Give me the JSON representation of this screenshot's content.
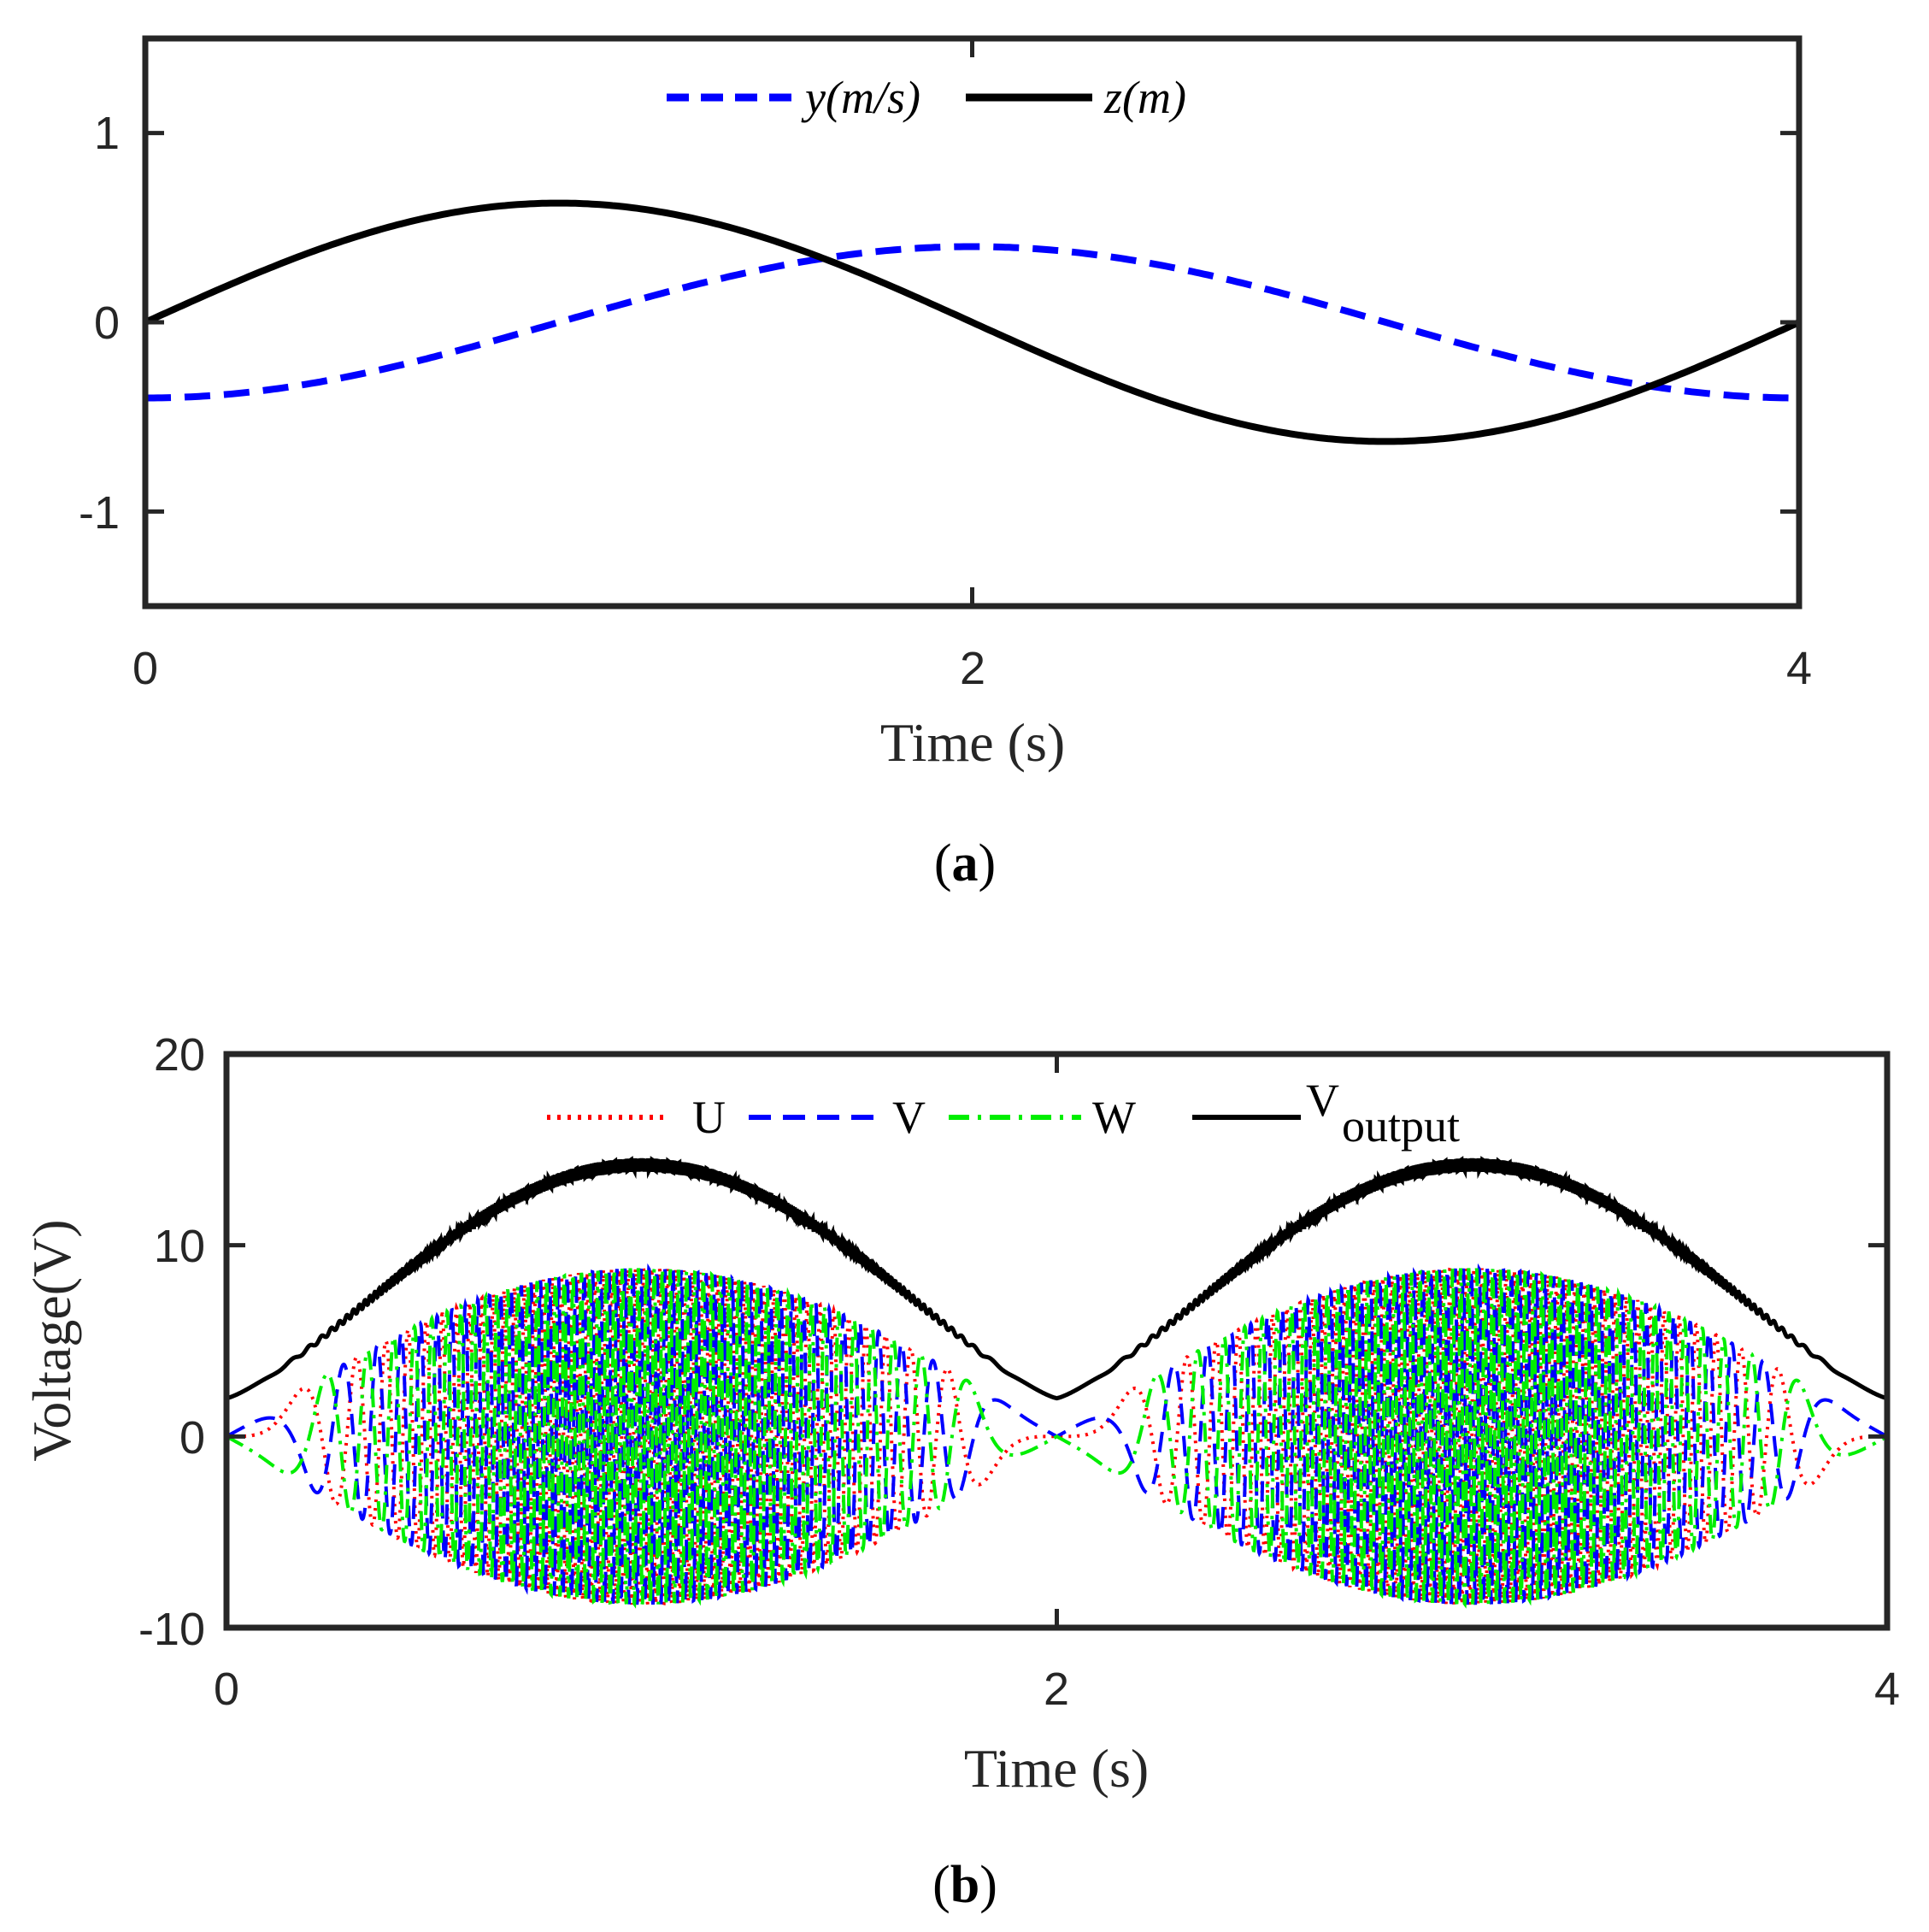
{
  "chart_data": [
    {
      "type": "line",
      "panel": "a",
      "caption_letter": "a",
      "xlabel": "Time (s)",
      "ylabel": "",
      "xlim": [
        0,
        4
      ],
      "ylim": [
        -1.5,
        1.5
      ],
      "xticks": [
        0,
        2,
        4
      ],
      "yticks": [
        -1,
        0,
        1
      ],
      "xtick_labels": [
        "0",
        "2",
        "4"
      ],
      "ytick_labels": [
        "-1",
        "0",
        "1"
      ],
      "legend_position": "top-center",
      "series": [
        {
          "name": "y(m/s)",
          "color": "#0000ff",
          "style": "dashed",
          "amplitude": 0.4,
          "function": "-0.4*cos(pi*t/2)"
        },
        {
          "name": "z(m)",
          "color": "#000000",
          "style": "solid",
          "amplitude": 0.63,
          "function": "0.63*sin(pi*t/2)"
        }
      ]
    },
    {
      "type": "line",
      "panel": "b",
      "caption_letter": "b",
      "xlabel": "Time (s)",
      "ylabel": "Voltage(V)",
      "xlim": [
        0,
        4
      ],
      "ylim": [
        -10,
        20
      ],
      "xticks": [
        0,
        2,
        4
      ],
      "yticks": [
        -10,
        0,
        10,
        20
      ],
      "xtick_labels": [
        "0",
        "2",
        "4"
      ],
      "ytick_labels": [
        "-10",
        "0",
        "10",
        "20"
      ],
      "legend_position": "top-center",
      "series": [
        {
          "name": "U",
          "color": "#ff0000",
          "style": "dotted",
          "peak_amplitude": 8.8
        },
        {
          "name": "V",
          "color": "#0000ff",
          "style": "dashed",
          "peak_amplitude": 8.8
        },
        {
          "name": "W",
          "color": "#00ee00",
          "style": "dash-dot",
          "peak_amplitude": 8.8
        },
        {
          "name": "V",
          "subscript": "output",
          "color": "#000000",
          "style": "solid",
          "peak": 14.2,
          "baseline": 2.0
        }
      ]
    }
  ]
}
